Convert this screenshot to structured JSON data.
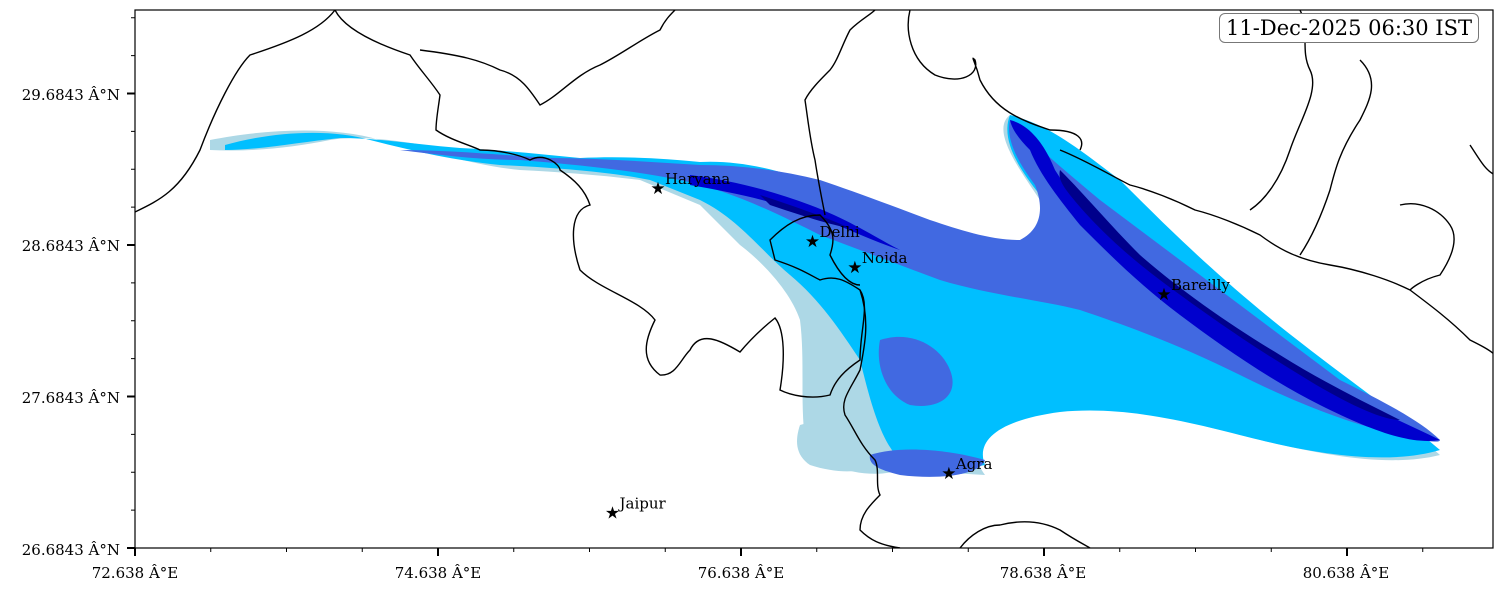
{
  "timestamp": "11-Dec-2025 06:30 IST",
  "axes": {
    "x_ticks": [
      "72.638 Â°E",
      "74.638 Â°E",
      "76.638 Â°E",
      "78.638 Â°E",
      "80.638 Â°E"
    ],
    "y_ticks": [
      "29.6843 Â°N",
      "28.6843 Â°N",
      "27.6843 Â°N",
      "26.6843 Â°N"
    ]
  },
  "cities": [
    {
      "name": "Haryana",
      "lon": 76.09,
      "lat": 29.06
    },
    {
      "name": "Delhi",
      "lon": 77.11,
      "lat": 28.71
    },
    {
      "name": "Noida",
      "lon": 77.39,
      "lat": 28.54
    },
    {
      "name": "Bareilly",
      "lon": 79.43,
      "lat": 28.36
    },
    {
      "name": "Agra",
      "lon": 78.01,
      "lat": 27.18
    },
    {
      "name": "Jaipur",
      "lon": 75.79,
      "lat": 26.92
    }
  ],
  "colors": {
    "light": "#add8e6",
    "sky": "#00bfff",
    "royal": "#4169e1",
    "medium": "#0000cd",
    "dark": "#00008b",
    "border": "#000000"
  }
}
